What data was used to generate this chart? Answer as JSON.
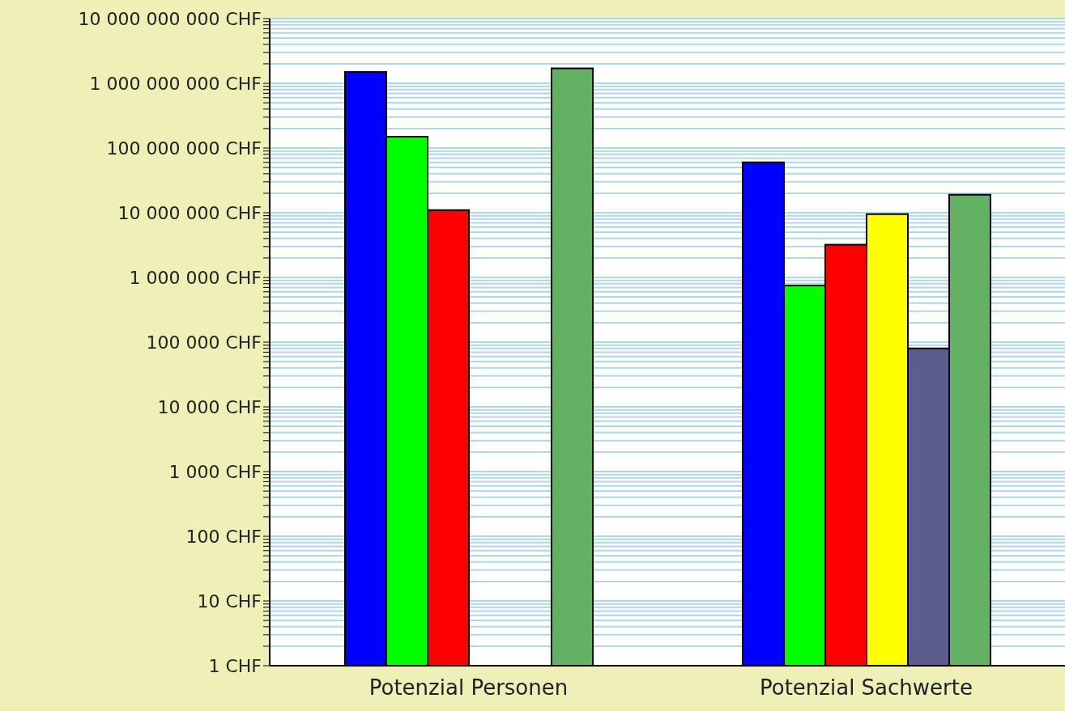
{
  "chart_data": {
    "type": "bar",
    "log": "y",
    "grid": "y",
    "categories": [
      "Potenzial Personen",
      "Potenzial Sachwerte"
    ],
    "series": [
      {
        "color": "#0000ff",
        "values": [
          1500000000,
          60000000
        ]
      },
      {
        "color": "#00ff00",
        "values": [
          150000000,
          750000
        ]
      },
      {
        "color": "#ff0000",
        "values": [
          11000000,
          3200000
        ]
      },
      {
        "color": "#ffff00",
        "values": [
          null,
          9500000
        ]
      },
      {
        "color": "#5c5c8e",
        "values": [
          null,
          80000
        ]
      },
      {
        "color": "#63b163",
        "values": [
          1700000000,
          19000000
        ]
      }
    ],
    "ylim": [
      1,
      10000000000
    ],
    "yticks": [
      {
        "value": 1,
        "label": "1 CHF"
      },
      {
        "value": 2,
        "label": null
      },
      {
        "value": 3,
        "label": null
      },
      {
        "value": 4,
        "label": null
      },
      {
        "value": 5,
        "label": null
      },
      {
        "value": 6,
        "label": null
      },
      {
        "value": 7,
        "label": null
      },
      {
        "value": 8,
        "label": null
      },
      {
        "value": 9,
        "label": null
      },
      {
        "value": 10,
        "label": "10 CHF"
      },
      {
        "value": 20,
        "label": null
      },
      {
        "value": 30,
        "label": null
      },
      {
        "value": 40,
        "label": null
      },
      {
        "value": 50,
        "label": null
      },
      {
        "value": 60,
        "label": null
      },
      {
        "value": 70,
        "label": null
      },
      {
        "value": 80,
        "label": null
      },
      {
        "value": 90,
        "label": null
      },
      {
        "value": 100,
        "label": "100 CHF"
      },
      {
        "value": 200,
        "label": null
      },
      {
        "value": 300,
        "label": null
      },
      {
        "value": 400,
        "label": null
      },
      {
        "value": 500,
        "label": null
      },
      {
        "value": 600,
        "label": null
      },
      {
        "value": 700,
        "label": null
      },
      {
        "value": 800,
        "label": null
      },
      {
        "value": 900,
        "label": null
      },
      {
        "value": 1000,
        "label": "1 000 CHF"
      },
      {
        "value": 2000,
        "label": null
      },
      {
        "value": 3000,
        "label": null
      },
      {
        "value": 4000,
        "label": null
      },
      {
        "value": 5000,
        "label": null
      },
      {
        "value": 6000,
        "label": null
      },
      {
        "value": 7000,
        "label": null
      },
      {
        "value": 8000,
        "label": null
      },
      {
        "value": 9000,
        "label": null
      },
      {
        "value": 10000,
        "label": "10 000 CHF"
      },
      {
        "value": 20000,
        "label": null
      },
      {
        "value": 30000,
        "label": null
      },
      {
        "value": 40000,
        "label": null
      },
      {
        "value": 50000,
        "label": null
      },
      {
        "value": 60000,
        "label": null
      },
      {
        "value": 70000,
        "label": null
      },
      {
        "value": 80000,
        "label": null
      },
      {
        "value": 90000,
        "label": null
      },
      {
        "value": 100000,
        "label": "100 000 CHF"
      },
      {
        "value": 200000,
        "label": null
      },
      {
        "value": 300000,
        "label": null
      },
      {
        "value": 400000,
        "label": null
      },
      {
        "value": 500000,
        "label": null
      },
      {
        "value": 600000,
        "label": null
      },
      {
        "value": 700000,
        "label": null
      },
      {
        "value": 800000,
        "label": null
      },
      {
        "value": 900000,
        "label": null
      },
      {
        "value": 1000000,
        "label": "1 000 000 CHF"
      },
      {
        "value": 2000000,
        "label": null
      },
      {
        "value": 3000000,
        "label": null
      },
      {
        "value": 4000000,
        "label": null
      },
      {
        "value": 5000000,
        "label": null
      },
      {
        "value": 6000000,
        "label": null
      },
      {
        "value": 7000000,
        "label": null
      },
      {
        "value": 8000000,
        "label": null
      },
      {
        "value": 9000000,
        "label": null
      },
      {
        "value": 10000000,
        "label": "10 000 000 CHF"
      },
      {
        "value": 20000000,
        "label": null
      },
      {
        "value": 30000000,
        "label": null
      },
      {
        "value": 40000000,
        "label": null
      },
      {
        "value": 50000000,
        "label": null
      },
      {
        "value": 60000000,
        "label": null
      },
      {
        "value": 70000000,
        "label": null
      },
      {
        "value": 80000000,
        "label": null
      },
      {
        "value": 90000000,
        "label": null
      },
      {
        "value": 100000000,
        "label": "100 000 000 CHF"
      },
      {
        "value": 200000000,
        "label": null
      },
      {
        "value": 300000000,
        "label": null
      },
      {
        "value": 400000000,
        "label": null
      },
      {
        "value": 500000000,
        "label": null
      },
      {
        "value": 600000000,
        "label": null
      },
      {
        "value": 700000000,
        "label": null
      },
      {
        "value": 800000000,
        "label": null
      },
      {
        "value": 900000000,
        "label": null
      },
      {
        "value": 1000000000,
        "label": "1 000 000 000 CHF"
      },
      {
        "value": 2000000000,
        "label": null
      },
      {
        "value": 3000000000,
        "label": null
      },
      {
        "value": 4000000000,
        "label": null
      },
      {
        "value": 5000000000,
        "label": null
      },
      {
        "value": 6000000000,
        "label": null
      },
      {
        "value": 7000000000,
        "label": null
      },
      {
        "value": 8000000000,
        "label": null
      },
      {
        "value": 9000000000,
        "label": null
      },
      {
        "value": 10000000000,
        "label": "10 000 000 000 CHF"
      }
    ],
    "legend": false
  }
}
